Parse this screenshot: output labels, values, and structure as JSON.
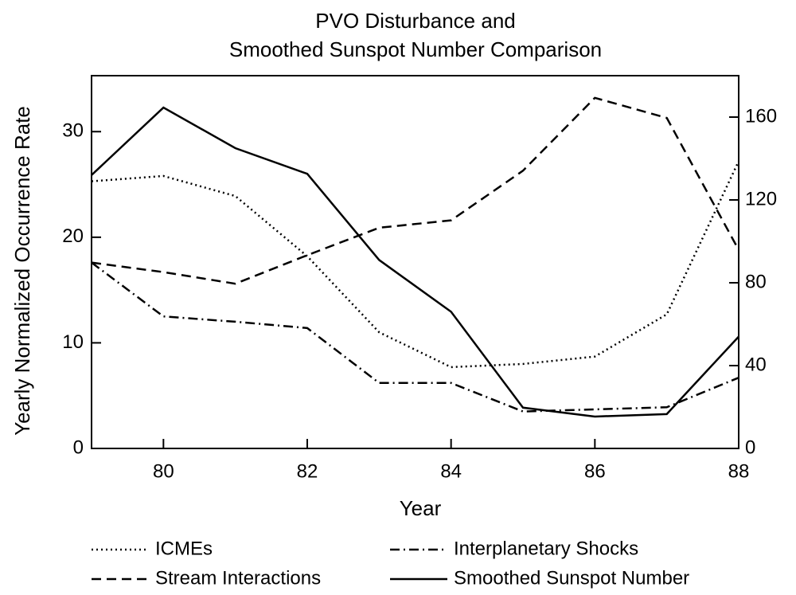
{
  "chart_data": {
    "type": "line",
    "title": [
      "PVO Disturbance and",
      "Smoothed Sunspot Number Comparison"
    ],
    "xlabel": "Year",
    "ylabel": "Yearly Normalized Occurrence Rate",
    "x": [
      79,
      80,
      81,
      82,
      83,
      84,
      85,
      86,
      87,
      88
    ],
    "xlim": [
      79,
      88
    ],
    "xticks": [
      80,
      82,
      84,
      86,
      88
    ],
    "ylim": [
      0,
      35.3
    ],
    "yticks": [
      0,
      10,
      20,
      30
    ],
    "y2lim": [
      0,
      180
    ],
    "y2ticks": [
      0,
      40,
      80,
      120,
      160
    ],
    "legend": "bottom",
    "series": [
      {
        "name": "ICMEs",
        "color": "#000000",
        "style": "dotted",
        "values": [
          25.3,
          25.8,
          23.9,
          18.2,
          11.0,
          7.7,
          8.0,
          8.7,
          12.7,
          27.2
        ]
      },
      {
        "name": "Interplanetary Shocks",
        "color": "#000000",
        "style": "dashdot",
        "values": [
          17.6,
          12.5,
          12.0,
          11.4,
          6.2,
          6.2,
          3.5,
          3.7,
          3.9,
          6.7
        ]
      },
      {
        "name": "Stream Interactions",
        "color": "#000000",
        "style": "dashed",
        "values": [
          17.6,
          16.7,
          15.6,
          18.3,
          20.9,
          21.6,
          26.3,
          33.2,
          31.3,
          18.8
        ]
      },
      {
        "name": "Smoothed Sunspot Number",
        "color": "#000000",
        "style": "solid",
        "axis": "y2",
        "values": [
          132,
          164.6,
          145,
          132.6,
          91,
          66,
          19.7,
          15.4,
          16.6,
          54
        ]
      }
    ]
  }
}
